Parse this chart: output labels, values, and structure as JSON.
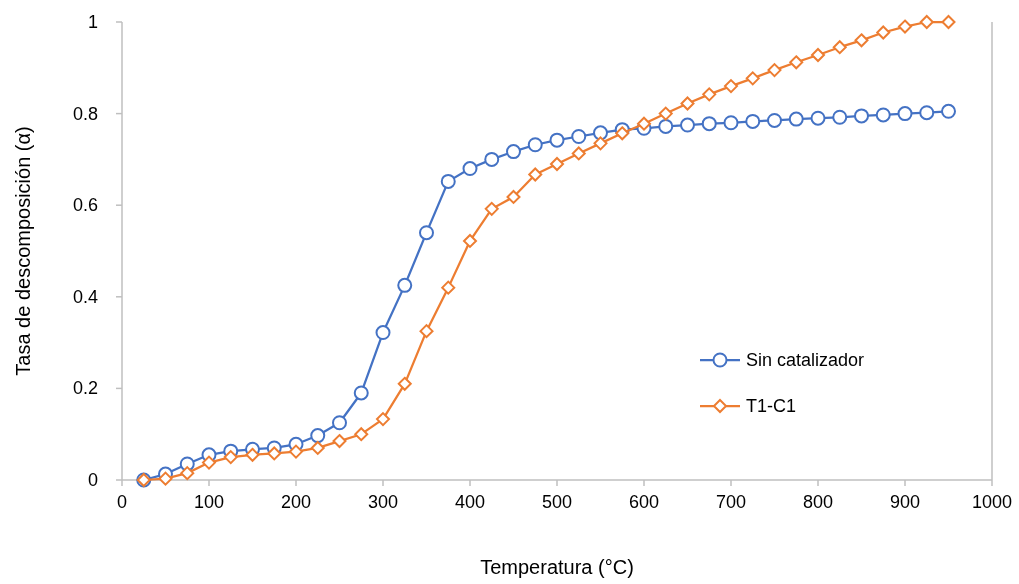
{
  "chart_data": {
    "type": "line",
    "xlabel": "Temperatura (°C)",
    "ylabel": "Tasa de descomposición (α)",
    "x": [
      25,
      50,
      75,
      100,
      125,
      150,
      175,
      200,
      225,
      250,
      275,
      300,
      325,
      350,
      375,
      400,
      425,
      450,
      475,
      500,
      525,
      550,
      575,
      600,
      625,
      650,
      675,
      700,
      725,
      750,
      775,
      800,
      825,
      850,
      875,
      900,
      925,
      950
    ],
    "series": [
      {
        "name": "Sin catalizador",
        "color": "#4472c4",
        "marker": "circle",
        "values": [
          0,
          0.013,
          0.035,
          0.055,
          0.063,
          0.067,
          0.07,
          0.078,
          0.097,
          0.125,
          0.19,
          0.322,
          0.425,
          0.54,
          0.652,
          0.68,
          0.7,
          0.717,
          0.732,
          0.742,
          0.75,
          0.758,
          0.765,
          0.768,
          0.772,
          0.775,
          0.778,
          0.78,
          0.783,
          0.785,
          0.788,
          0.79,
          0.792,
          0.795,
          0.797,
          0.8,
          0.802,
          0.805
        ]
      },
      {
        "name": "T1-C1",
        "color": "#ed7d31",
        "marker": "diamond",
        "values": [
          0,
          0.003,
          0.015,
          0.038,
          0.05,
          0.055,
          0.058,
          0.062,
          0.07,
          0.085,
          0.1,
          0.133,
          0.21,
          0.325,
          0.42,
          0.522,
          0.592,
          0.618,
          0.667,
          0.69,
          0.713,
          0.735,
          0.757,
          0.778,
          0.8,
          0.822,
          0.842,
          0.86,
          0.877,
          0.895,
          0.912,
          0.928,
          0.945,
          0.96,
          0.977,
          0.99,
          1.0,
          1.0
        ]
      }
    ],
    "xlim": [
      0,
      1000
    ],
    "xticks": [
      0,
      100,
      200,
      300,
      400,
      500,
      600,
      700,
      800,
      900,
      1000
    ],
    "ylim": [
      0,
      1
    ],
    "yticks": [
      0,
      0.2,
      0.4,
      0.6,
      0.8,
      1
    ],
    "grid": false,
    "legend": "right",
    "line_style": "solid"
  }
}
